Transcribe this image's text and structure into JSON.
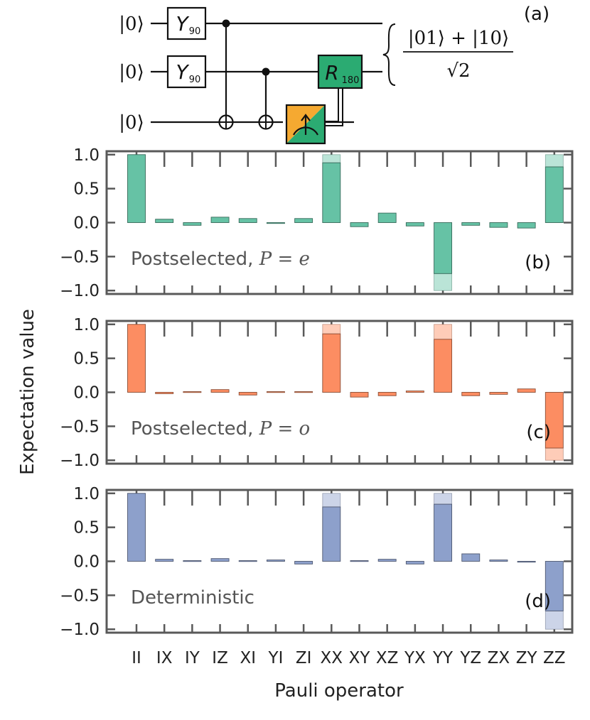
{
  "circuit": {
    "panel_label": "(a)",
    "qubit_labels": [
      "|0⟩",
      "|0⟩",
      "|0⟩"
    ],
    "gates": [
      {
        "name": "Y",
        "sub": "90"
      },
      {
        "name": "Y",
        "sub": "90"
      },
      {
        "name": "R",
        "sub": "180"
      }
    ],
    "output_state": {
      "numerator": "|01⟩ + |10⟩",
      "denominator": "√2"
    },
    "colors": {
      "measure_left": "#f5a931",
      "measure_right": "#2bab72",
      "r_gate": "#2bab72"
    }
  },
  "axes": {
    "ylabel": "Expectation value",
    "xlabel": "Pauli operator",
    "yticks": [
      "1.0",
      "0.5",
      "0.0",
      "−0.5",
      "−1.0"
    ]
  },
  "chart_data": [
    {
      "type": "bar",
      "panel": "(b)",
      "annotation_text": "Postselected, ",
      "annotation_math": "P = e",
      "color": "#66c2a5",
      "categories": [
        "II",
        "IX",
        "IY",
        "IZ",
        "XI",
        "YI",
        "ZI",
        "XX",
        "XY",
        "XZ",
        "YX",
        "YY",
        "YZ",
        "ZX",
        "ZY",
        "ZZ"
      ],
      "values": [
        1.0,
        0.05,
        -0.04,
        0.08,
        0.06,
        -0.01,
        0.06,
        0.88,
        -0.06,
        0.14,
        -0.05,
        -0.75,
        -0.04,
        -0.07,
        -0.08,
        0.82
      ],
      "ideal": [
        1,
        0,
        0,
        0,
        0,
        0,
        0,
        1,
        0,
        0,
        0,
        -1,
        0,
        0,
        0,
        1
      ],
      "ylim": [
        -1.05,
        1.05
      ]
    },
    {
      "type": "bar",
      "panel": "(c)",
      "annotation_text": "Postselected, ",
      "annotation_math": "P = o",
      "color": "#fc8d62",
      "categories": [
        "II",
        "IX",
        "IY",
        "IZ",
        "XI",
        "YI",
        "ZI",
        "XX",
        "XY",
        "XZ",
        "YX",
        "YY",
        "YZ",
        "ZX",
        "ZY",
        "ZZ"
      ],
      "values": [
        1.0,
        -0.02,
        0.01,
        0.04,
        -0.04,
        0.01,
        0.01,
        0.86,
        -0.07,
        -0.05,
        0.02,
        0.78,
        -0.05,
        -0.03,
        0.05,
        -0.82
      ],
      "ideal": [
        1,
        0,
        0,
        0,
        0,
        0,
        0,
        1,
        0,
        0,
        0,
        1,
        0,
        0,
        0,
        -1
      ],
      "ylim": [
        -1.05,
        1.05
      ]
    },
    {
      "type": "bar",
      "panel": "(d)",
      "annotation_text": "Deterministic",
      "annotation_math": "",
      "color": "#8da0cb",
      "categories": [
        "II",
        "IX",
        "IY",
        "IZ",
        "XI",
        "YI",
        "ZI",
        "XX",
        "XY",
        "XZ",
        "YX",
        "YY",
        "YZ",
        "ZX",
        "ZY",
        "ZZ"
      ],
      "values": [
        1.0,
        0.03,
        0.01,
        0.04,
        0.01,
        0.02,
        -0.04,
        0.8,
        0.01,
        0.03,
        -0.04,
        0.84,
        0.11,
        0.02,
        -0.01,
        -0.73
      ],
      "ideal": [
        1,
        0,
        0,
        0,
        0,
        0,
        0,
        1,
        0,
        0,
        0,
        1,
        0,
        0,
        0,
        -1
      ],
      "ylim": [
        -1.05,
        1.05
      ]
    }
  ]
}
